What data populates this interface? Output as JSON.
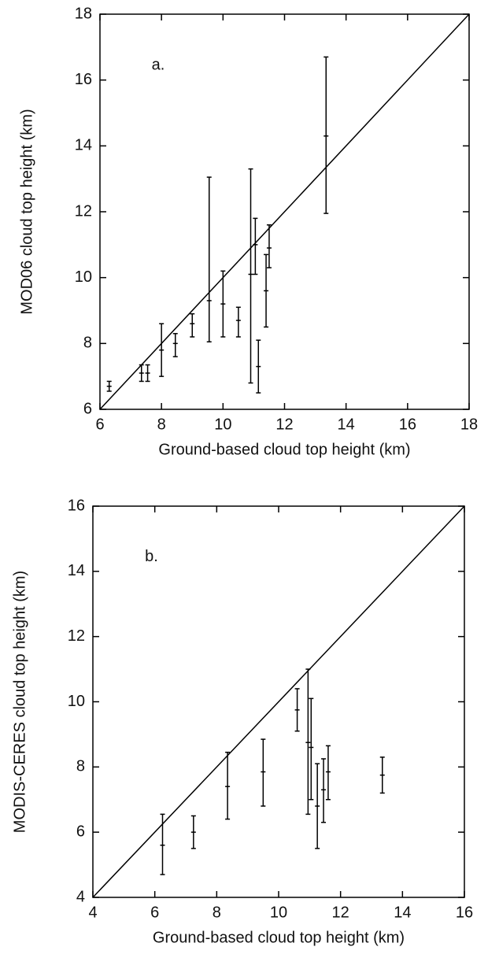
{
  "chart_data": [
    {
      "type": "errorbar",
      "annotation": "a.",
      "x_label": "Ground-based cloud top height (km)",
      "y_label": "MOD06 cloud top height (km)",
      "xlim": [
        6,
        18
      ],
      "xticks": [
        6,
        8,
        10,
        12,
        14,
        16,
        18
      ],
      "ylim": [
        6,
        18
      ],
      "yticks": [
        6,
        8,
        10,
        12,
        14,
        16,
        18
      ],
      "identity_line": true,
      "color": "#000000",
      "x": [
        6.3,
        7.35,
        7.55,
        8.0,
        8.45,
        9.0,
        9.55,
        10.0,
        10.5,
        10.9,
        11.05,
        11.15,
        11.4,
        11.5,
        13.35
      ],
      "values": [
        6.7,
        7.1,
        7.1,
        7.8,
        8.0,
        8.6,
        9.3,
        9.2,
        8.7,
        10.1,
        11.0,
        7.3,
        9.6,
        10.9,
        14.3
      ],
      "low": [
        6.55,
        6.85,
        6.85,
        7.0,
        7.6,
        8.2,
        8.05,
        8.2,
        8.2,
        6.8,
        10.1,
        6.5,
        8.5,
        10.3,
        11.95
      ],
      "high": [
        6.85,
        7.35,
        7.35,
        8.6,
        8.3,
        8.9,
        13.05,
        10.2,
        9.1,
        13.3,
        11.8,
        8.1,
        10.7,
        11.6,
        16.7
      ]
    },
    {
      "type": "errorbar",
      "annotation": "b.",
      "x_label": "Ground-based cloud top height (km)",
      "y_label": "MODIS-CERES cloud top height (km)",
      "xlim": [
        4,
        16
      ],
      "xticks": [
        4,
        6,
        8,
        10,
        12,
        14,
        16
      ],
      "ylim": [
        4,
        16
      ],
      "yticks": [
        4,
        6,
        8,
        10,
        12,
        14,
        16
      ],
      "identity_line": true,
      "color": "#000000",
      "x": [
        6.25,
        7.25,
        8.35,
        9.5,
        10.6,
        10.95,
        11.05,
        11.25,
        11.45,
        11.6,
        13.35
      ],
      "values": [
        5.6,
        6.0,
        7.4,
        7.85,
        9.75,
        8.75,
        8.6,
        6.8,
        7.3,
        7.85,
        7.75
      ],
      "low": [
        4.7,
        5.5,
        6.4,
        6.8,
        9.1,
        6.55,
        7.0,
        5.5,
        6.3,
        7.0,
        7.2
      ],
      "high": [
        6.55,
        6.5,
        8.45,
        8.85,
        10.4,
        11.0,
        10.1,
        8.1,
        8.25,
        8.65,
        8.3
      ]
    }
  ]
}
